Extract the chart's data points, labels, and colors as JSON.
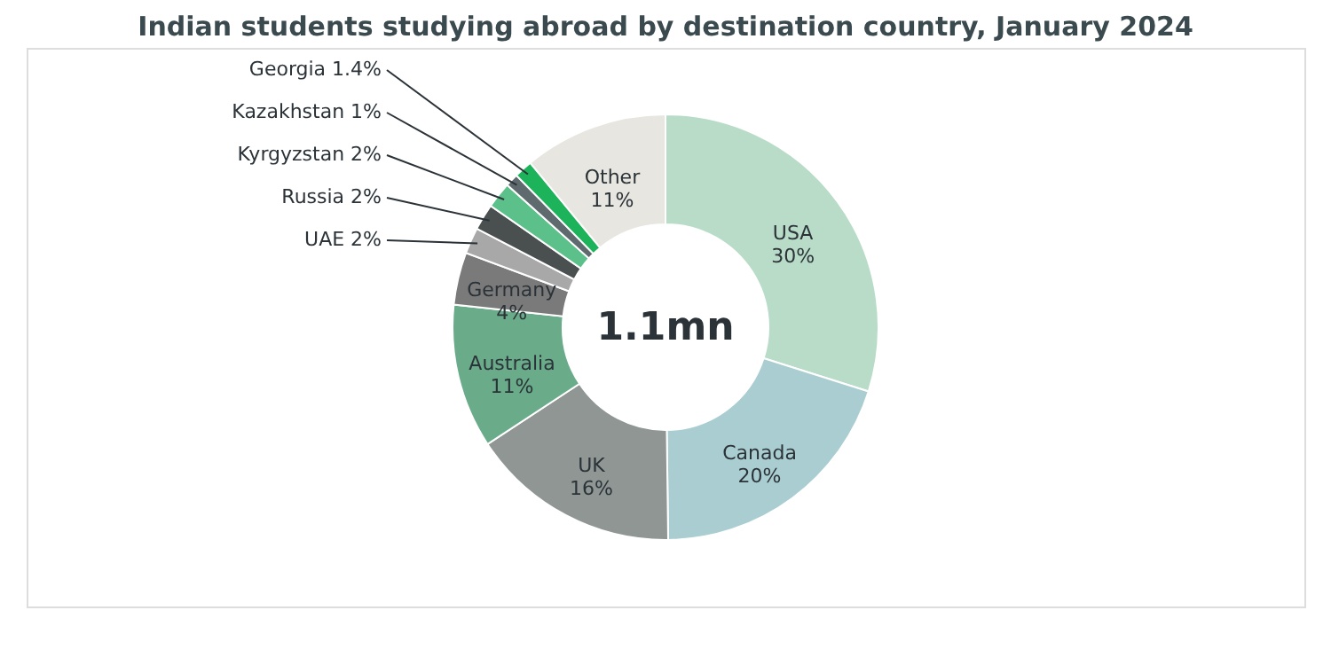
{
  "chart_data": {
    "type": "donut",
    "title": "Indian students studying abroad by destination country, January 2024",
    "categories": [
      "USA",
      "Canada",
      "UK",
      "Australia",
      "Germany",
      "UAE",
      "Russia",
      "Kyrgyzstan",
      "Kazakhstan",
      "Georgia",
      "Other"
    ],
    "values": [
      30,
      20,
      16,
      11,
      4,
      2,
      2,
      2,
      1,
      1.4,
      11
    ],
    "value_labels": [
      "30%",
      "20%",
      "16%",
      "11%",
      "4%",
      "2%",
      "2%",
      "2%",
      "1%",
      "1.4%",
      "11%"
    ],
    "colors": [
      "#b9dcc9",
      "#a9cdd0",
      "#8f9694",
      "#6aab8a",
      "#7a7a7a",
      "#a8a8a8",
      "#4a4f50",
      "#5cc08a",
      "#5f6a6e",
      "#1db35a",
      "#e8e6e0"
    ],
    "annotations": [
      "1.1mn"
    ]
  }
}
